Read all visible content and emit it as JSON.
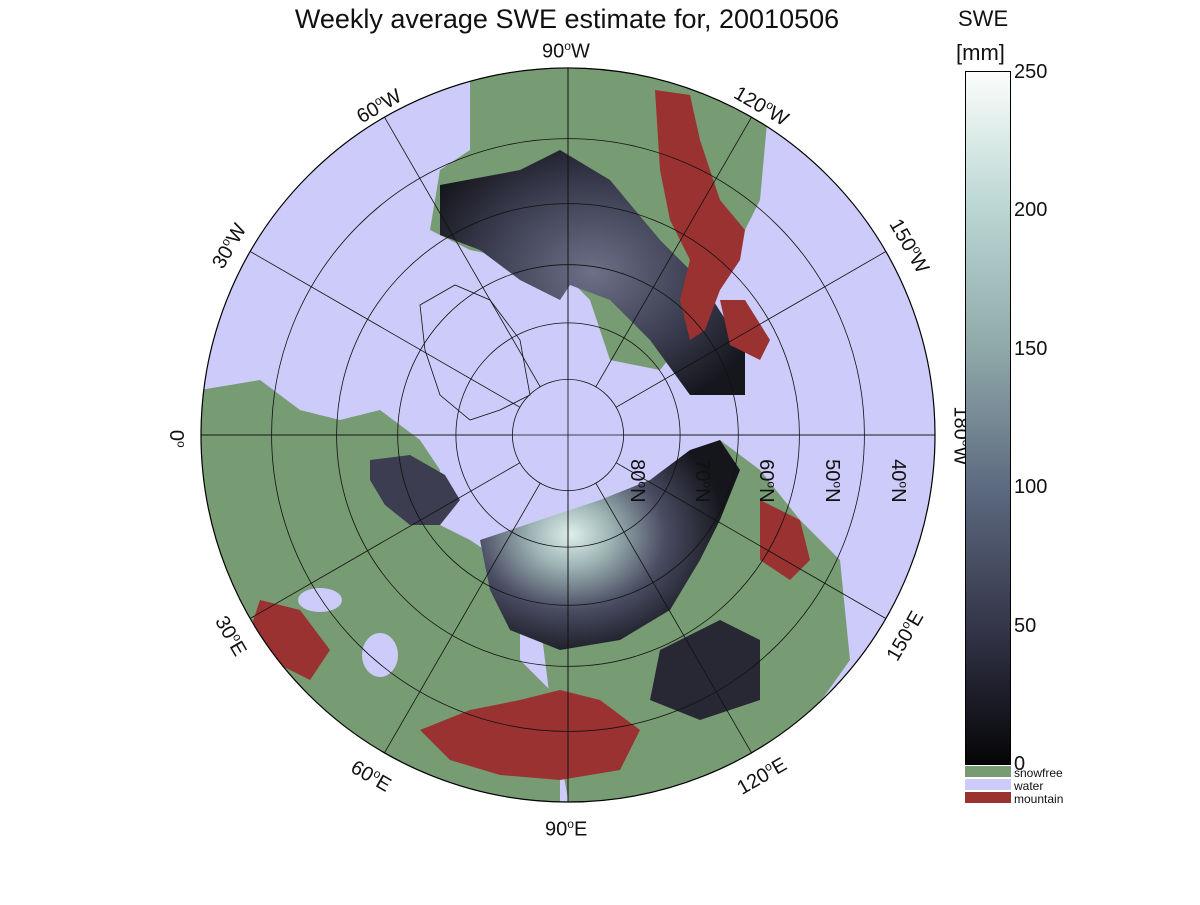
{
  "title": "Weekly average SWE estimate for, 20010506",
  "colorbar": {
    "title_line1": "SWE",
    "title_line2": "[mm]",
    "ticks": [
      "250",
      "200",
      "150",
      "100",
      "50",
      "0"
    ],
    "range": [
      0,
      250
    ]
  },
  "legend": [
    {
      "label": "snowfree",
      "color": "#779b72"
    },
    {
      "label": "water",
      "color": "#cccbfa"
    },
    {
      "label": "mountain",
      "color": "#9b3232"
    }
  ],
  "longitude_labels": [
    {
      "deg": "90",
      "dir": "W"
    },
    {
      "deg": "120",
      "dir": "W"
    },
    {
      "deg": "150",
      "dir": "W"
    },
    {
      "deg": "180",
      "dir": "W"
    },
    {
      "deg": "150",
      "dir": "E"
    },
    {
      "deg": "120",
      "dir": "E"
    },
    {
      "deg": "90",
      "dir": "E"
    },
    {
      "deg": "60",
      "dir": "E"
    },
    {
      "deg": "30",
      "dir": "E"
    },
    {
      "deg": "0",
      "dir": ""
    },
    {
      "deg": "30",
      "dir": "W"
    },
    {
      "deg": "60",
      "dir": "W"
    }
  ],
  "latitude_labels": [
    {
      "deg": "80",
      "dir": "N"
    },
    {
      "deg": "70",
      "dir": "N"
    },
    {
      "deg": "60",
      "dir": "N"
    },
    {
      "deg": "50",
      "dir": "N"
    },
    {
      "deg": "40",
      "dir": "N"
    }
  ],
  "colors": {
    "water": "#cccbfa",
    "snowfree": "#779b72",
    "mountain": "#9b3232",
    "snow_low": "#1a1a24",
    "snow_mid": "#4c4f66",
    "snow_high": "#c9e0dc"
  }
}
